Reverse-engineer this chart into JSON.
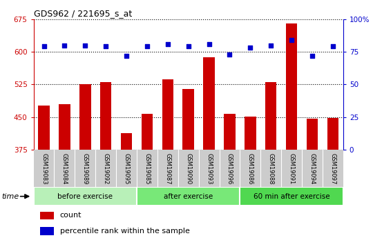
{
  "title": "GDS962 / 221695_s_at",
  "samples": [
    "GSM19083",
    "GSM19084",
    "GSM19089",
    "GSM19092",
    "GSM19095",
    "GSM19085",
    "GSM19087",
    "GSM19090",
    "GSM19093",
    "GSM19096",
    "GSM19086",
    "GSM19088",
    "GSM19091",
    "GSM19094",
    "GSM19097"
  ],
  "counts": [
    477,
    480,
    525,
    530,
    413,
    457,
    537,
    515,
    588,
    457,
    452,
    530,
    665,
    447,
    449
  ],
  "percentile_ranks": [
    79,
    80,
    80,
    79,
    72,
    79,
    81,
    79,
    81,
    73,
    78,
    80,
    84,
    72,
    79
  ],
  "groups": [
    {
      "label": "before exercise",
      "start": 0,
      "end": 5,
      "color": "#b8f0b8"
    },
    {
      "label": "after exercise",
      "start": 5,
      "end": 10,
      "color": "#78e878"
    },
    {
      "label": "60 min after exercise",
      "start": 10,
      "end": 15,
      "color": "#50d850"
    }
  ],
  "ylim_left": [
    375,
    675
  ],
  "yticks_left": [
    375,
    450,
    525,
    600,
    675
  ],
  "ylim_right": [
    0,
    100
  ],
  "yticks_right": [
    0,
    25,
    50,
    75,
    100
  ],
  "bar_color": "#cc0000",
  "dot_color": "#0000cc",
  "bar_width": 0.55,
  "legend_items": [
    {
      "label": "count",
      "color": "#cc0000"
    },
    {
      "label": "percentile rank within the sample",
      "color": "#0000cc"
    }
  ],
  "background_color": "#ffffff",
  "tick_label_color_left": "#cc0000",
  "tick_label_color_right": "#0000cc",
  "label_bg_color": "#cccccc"
}
